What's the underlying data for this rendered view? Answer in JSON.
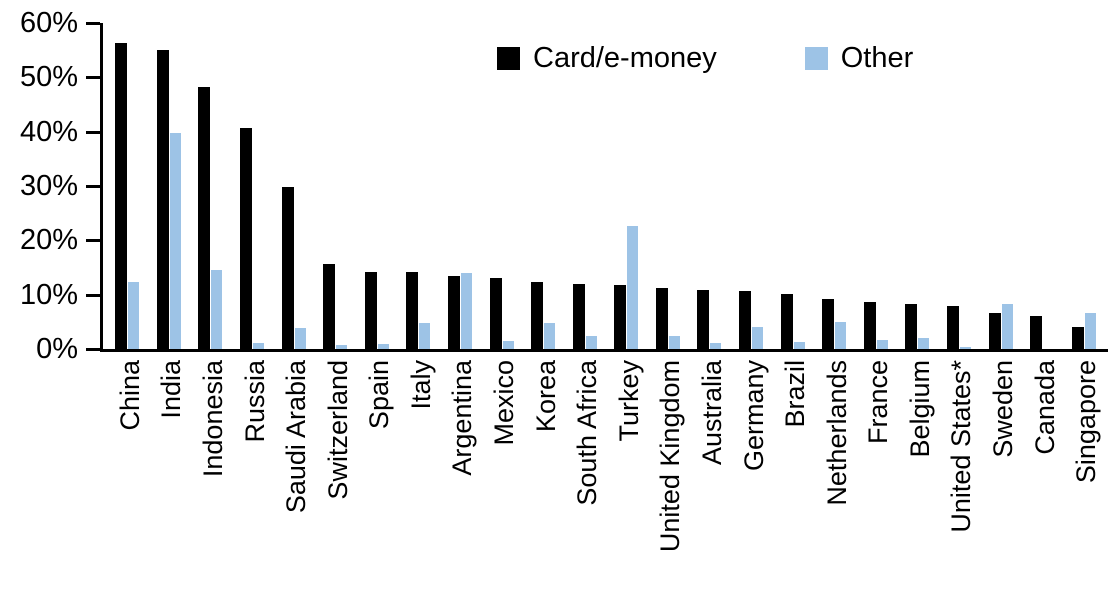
{
  "chart_data": {
    "type": "bar",
    "title": "",
    "xlabel": "",
    "ylabel": "",
    "categories": [
      "China",
      "India",
      "Indonesia",
      "Russia",
      "Saudi Arabia",
      "Switzerland",
      "Spain",
      "Italy",
      "Argentina",
      "Mexico",
      "Korea",
      "South Africa",
      "Turkey",
      "United Kingdom",
      "Australia",
      "Germany",
      "Brazil",
      "Netherlands",
      "France",
      "Belgium",
      "United States*",
      "Sweden",
      "Canada",
      "Singapore"
    ],
    "series": [
      {
        "name": "Card/e-money",
        "color": "#000000",
        "values": [
          56.3,
          55.0,
          48.3,
          40.6,
          29.9,
          15.6,
          14.2,
          14.1,
          13.5,
          13.1,
          12.3,
          11.9,
          11.8,
          11.2,
          10.9,
          10.6,
          10.1,
          9.2,
          8.7,
          8.2,
          7.9,
          6.6,
          6.0,
          4.0
        ]
      },
      {
        "name": "Other",
        "color": "#9DC3E6",
        "values": [
          12.3,
          39.7,
          14.5,
          1.1,
          3.9,
          0.8,
          1.0,
          4.8,
          13.9,
          1.4,
          4.7,
          2.4,
          22.7,
          2.4,
          1.1,
          4.0,
          1.2,
          5.0,
          1.6,
          2.1,
          0.3,
          8.2,
          0.0,
          6.7
        ]
      }
    ],
    "ylim": [
      0,
      60
    ],
    "ytick_step": 10,
    "ytick_labels": [
      "0%",
      "10%",
      "20%",
      "30%",
      "40%",
      "50%",
      "60%"
    ],
    "grid": false,
    "legend_position": "top-center"
  }
}
